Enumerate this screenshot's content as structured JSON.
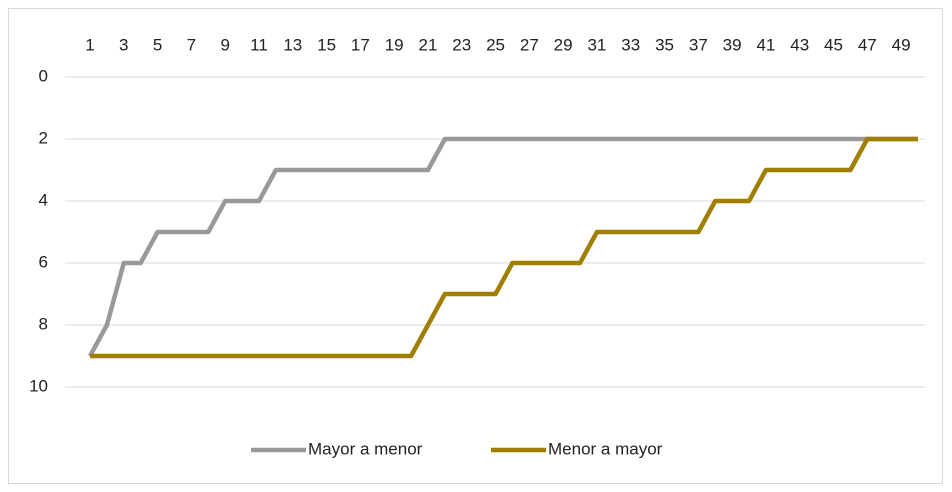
{
  "chart_data": {
    "type": "line",
    "categories": [
      1,
      null,
      3,
      null,
      5,
      null,
      7,
      null,
      9,
      null,
      11,
      null,
      13,
      null,
      15,
      null,
      17,
      null,
      19,
      null,
      21,
      null,
      23,
      null,
      25,
      null,
      27,
      null,
      29,
      null,
      31,
      null,
      33,
      null,
      35,
      null,
      37,
      null,
      39,
      null,
      41,
      null,
      43,
      null,
      45,
      null,
      47,
      null,
      49,
      null
    ],
    "series": [
      {
        "name": "Mayor a menor",
        "color": "#999999",
        "values": [
          9,
          8,
          6,
          6,
          5,
          5,
          5,
          5,
          4,
          4,
          4,
          3,
          3,
          3,
          3,
          3,
          3,
          3,
          3,
          3,
          3,
          2,
          2,
          2,
          2,
          2,
          2,
          2,
          2,
          2,
          2,
          2,
          2,
          2,
          2,
          2,
          2,
          2,
          2,
          2,
          2,
          2,
          2,
          2,
          2,
          2,
          2,
          2,
          2,
          2
        ]
      },
      {
        "name": "Menor a mayor",
        "color": "#a07f00",
        "values": [
          9,
          9,
          9,
          9,
          9,
          9,
          9,
          9,
          9,
          9,
          9,
          9,
          9,
          9,
          9,
          9,
          9,
          9,
          9,
          9,
          8,
          7,
          7,
          7,
          7,
          6,
          6,
          6,
          6,
          6,
          5,
          5,
          5,
          5,
          5,
          5,
          5,
          4,
          4,
          4,
          3,
          3,
          3,
          3,
          3,
          3,
          2,
          2,
          2,
          2
        ]
      }
    ],
    "ylim": [
      0,
      10
    ],
    "yticks": [
      0,
      2,
      4,
      6,
      8,
      10
    ],
    "y_inverted": true,
    "grid": true,
    "legend": "bottom"
  }
}
